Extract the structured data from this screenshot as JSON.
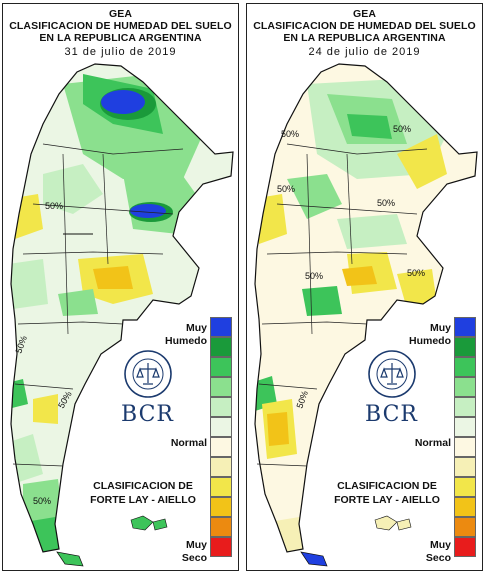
{
  "panels": [
    {
      "org": "GEA",
      "title_line1": "CLASIFICACION DE HUMEDAD DEL SUELO",
      "title_line2": "EN LA REPUBLICA ARGENTINA",
      "date": "31 de julio de 2019",
      "contour_labels": [
        "50%",
        "50%",
        "50%",
        "50%"
      ]
    },
    {
      "org": "GEA",
      "title_line1": "CLASIFICACION DE HUMEDAD DEL SUELO",
      "title_line2": "EN LA REPUBLICA ARGENTINA",
      "date": "24 de julio de 2019",
      "contour_labels": [
        "50%",
        "50%",
        "50%",
        "50%",
        "50%",
        "50%",
        "50%"
      ]
    }
  ],
  "legend": {
    "top_label_1": "Muy",
    "top_label_2": "Humedo",
    "mid_label": "Normal",
    "bottom_label_1": "Muy",
    "bottom_label_2": "Seco",
    "colors": [
      "#1f3fe0",
      "#1a9a3a",
      "#3dc45a",
      "#8be08e",
      "#c6efc2",
      "#ebf6e4",
      "#fdf8e2",
      "#f6f0b6",
      "#f2e64a",
      "#f2c318",
      "#ec8a10",
      "#e81c1c"
    ]
  },
  "classification_title_1": "CLASIFICACION DE",
  "classification_title_2": "FORTE LAY - AIELLO",
  "logo_text": "BCR",
  "seal_text": "BOLSA DE COMERCIO DE ROSARIO"
}
